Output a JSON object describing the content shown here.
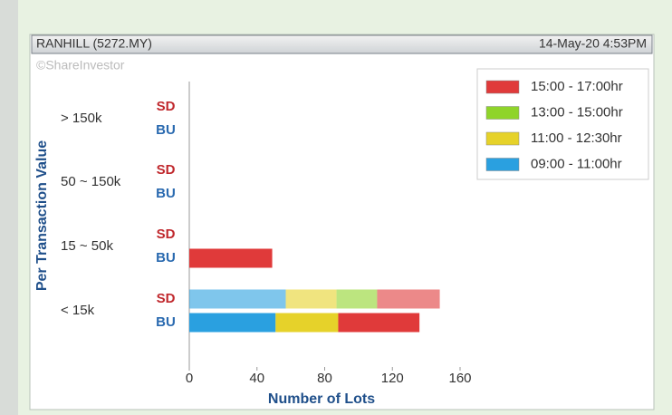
{
  "chart_data": {
    "type": "bar",
    "header_left": "RANHILL (5272.MY)",
    "header_right": "14-May-20 4:53PM",
    "watermark": "©ShareInvestor",
    "y_label": "Per Transaction Value",
    "x_label": "Number of Lots",
    "categories": [
      "> 150k",
      "50 ~ 150k",
      "15 ~ 50k",
      "< 15k"
    ],
    "sides": [
      "SD",
      "BU"
    ],
    "xlim": [
      0,
      160
    ],
    "xticks": [
      0,
      40,
      80,
      120,
      160
    ],
    "legend": "top-right",
    "series": [
      {
        "name": "15:00 - 17:00hr",
        "color": "#e03a3a",
        "values": [
          [
            null,
            null
          ],
          [
            null,
            null
          ],
          [
            null,
            49
          ],
          [
            37,
            48
          ]
        ]
      },
      {
        "name": "13:00 - 15:00hr",
        "color": "#8fd42a",
        "values": [
          [
            null,
            null
          ],
          [
            null,
            null
          ],
          [
            null,
            null
          ],
          [
            24,
            null
          ]
        ]
      },
      {
        "name": "11:00 - 12:30hr",
        "color": "#e6d22a",
        "values": [
          [
            null,
            null
          ],
          [
            null,
            null
          ],
          [
            null,
            null
          ],
          [
            30,
            37
          ]
        ]
      },
      {
        "name": "09:00 - 11:00hr",
        "color": "#2aa0e0",
        "values": [
          [
            null,
            null
          ],
          [
            null,
            null
          ],
          [
            null,
            null
          ],
          [
            57,
            51
          ]
        ]
      }
    ]
  }
}
